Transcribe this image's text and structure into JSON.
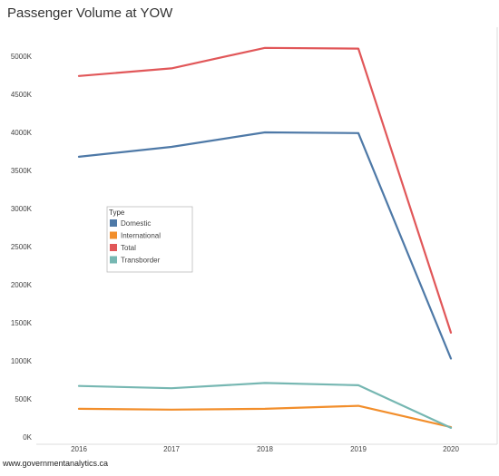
{
  "title": "Passenger Volume at YOW",
  "footer": "www.governmentanalytics.ca",
  "chart_data": {
    "type": "line",
    "title": "Passenger Volume at YOW",
    "xlabel": "",
    "ylabel": "",
    "x": [
      "2016",
      "2017",
      "2018",
      "2019",
      "2020"
    ],
    "ylim": [
      0,
      5400
    ],
    "y_ticks": [
      0,
      500,
      1000,
      1500,
      2000,
      2500,
      3000,
      3500,
      4000,
      4500,
      5000
    ],
    "y_tick_labels": [
      "0K",
      "500K",
      "1000K",
      "1500K",
      "2000K",
      "2500K",
      "3000K",
      "3500K",
      "4000K",
      "4500K",
      "5000K"
    ],
    "grid": false,
    "legend": {
      "title": "Type",
      "placement": "center-left"
    },
    "series": [
      {
        "name": "Domestic",
        "color": "#4e79a7",
        "values": [
          3680,
          3810,
          4000,
          3990,
          1030
        ]
      },
      {
        "name": "International",
        "color": "#f28e2b",
        "values": [
          370,
          360,
          370,
          410,
          130
        ]
      },
      {
        "name": "Total",
        "color": "#e15759",
        "values": [
          4740,
          4840,
          5110,
          5100,
          1370
        ]
      },
      {
        "name": "Transborder",
        "color": "#76b7b2",
        "values": [
          670,
          640,
          710,
          680,
          120
        ]
      }
    ]
  }
}
